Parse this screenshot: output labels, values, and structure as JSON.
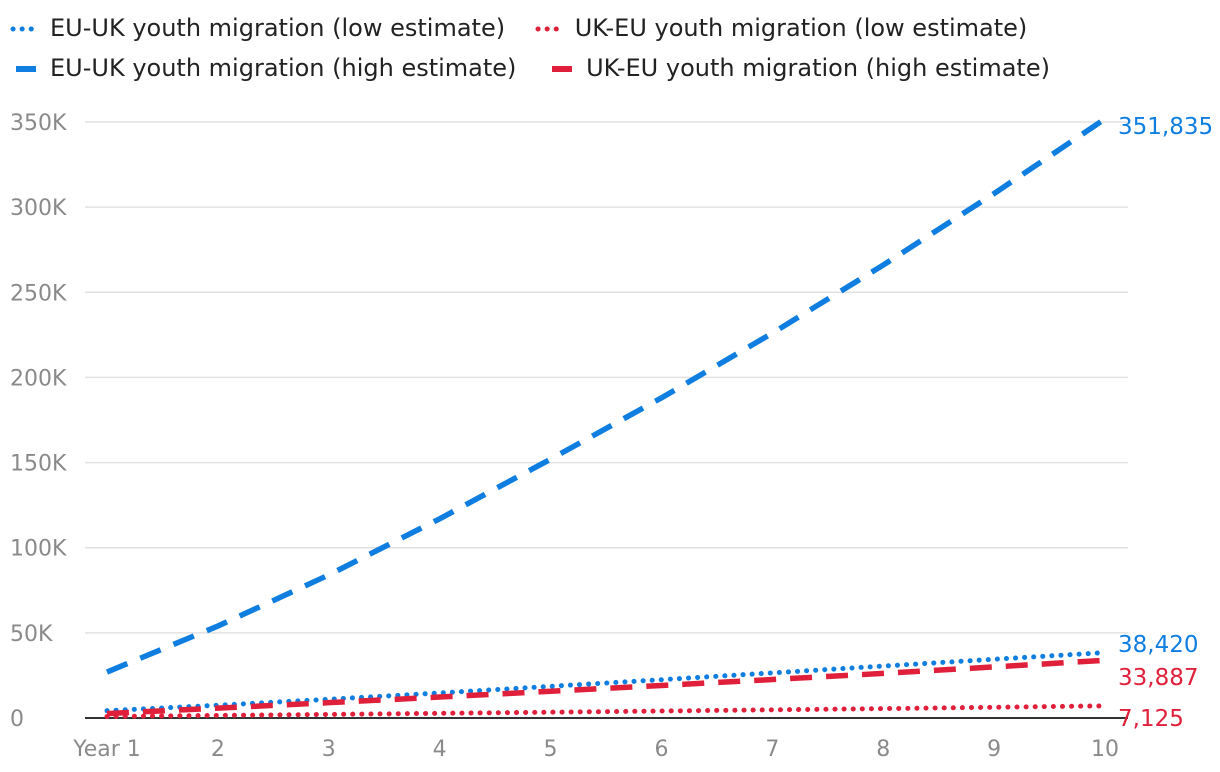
{
  "legend": [
    {
      "label": "EU-UK youth migration (low estimate)",
      "color": "#0f7ee0",
      "style": "dotted"
    },
    {
      "label": "UK-EU youth migration (low estimate)",
      "color": "#e0203a",
      "style": "dotted"
    },
    {
      "label": "EU-UK youth migration (high estimate)",
      "color": "#0f7ee0",
      "style": "dashed"
    },
    {
      "label": "UK-EU youth migration (high estimate)",
      "color": "#e0203a",
      "style": "dashed"
    }
  ],
  "chart_data": {
    "type": "line",
    "x": [
      "Year 1",
      "2",
      "3",
      "4",
      "5",
      "6",
      "7",
      "8",
      "9",
      "10"
    ],
    "ylim": [
      0,
      350000
    ],
    "yticks": [
      0,
      50000,
      100000,
      150000,
      200000,
      250000,
      300000,
      350000
    ],
    "ytick_labels": [
      "0",
      "50K",
      "100K",
      "150K",
      "200K",
      "250K",
      "300K",
      "350K"
    ],
    "grid": true,
    "legend_position": "top",
    "series": [
      {
        "name": "EU-UK youth migration (low estimate)",
        "color": "#0f7ee0",
        "style": "dotted",
        "values": [
          4300,
          7500,
          11000,
          14700,
          18600,
          22500,
          26500,
          30500,
          34500,
          38420
        ],
        "end_label": "38,420"
      },
      {
        "name": "UK-EU youth migration (low estimate)",
        "color": "#e0203a",
        "style": "dotted",
        "values": [
          900,
          1500,
          2100,
          2750,
          3400,
          4100,
          4800,
          5500,
          6300,
          7125
        ],
        "end_label": "7,125"
      },
      {
        "name": "EU-UK youth migration (high estimate)",
        "color": "#0f7ee0",
        "style": "dashed",
        "values": [
          27000,
          54000,
          84000,
          117000,
          152000,
          188000,
          226000,
          266000,
          308000,
          351835
        ],
        "end_label": "351,835"
      },
      {
        "name": "UK-EU youth migration (high estimate)",
        "color": "#e0203a",
        "style": "dashed",
        "values": [
          2600,
          5800,
          9000,
          12300,
          15700,
          19100,
          22600,
          26200,
          30000,
          33887
        ],
        "end_label": "33,887"
      }
    ]
  }
}
